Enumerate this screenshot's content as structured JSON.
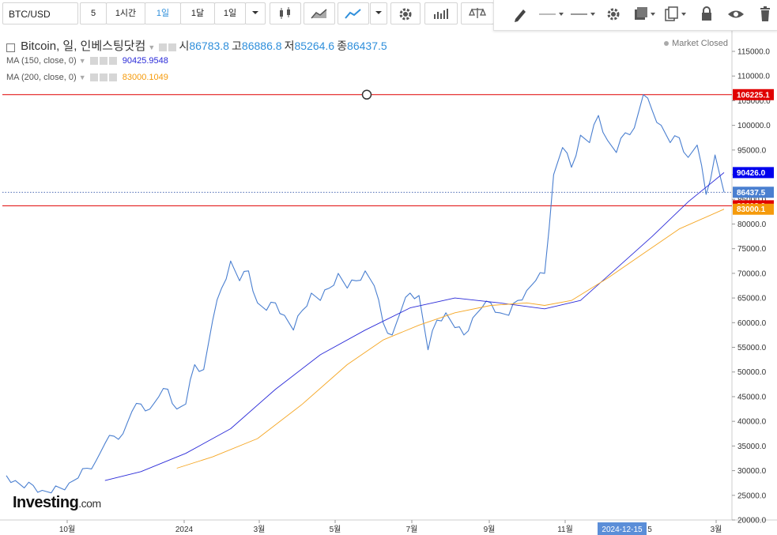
{
  "toolbar": {
    "symbol": "BTC/USD",
    "intervals": [
      "5",
      "1시간",
      "1일",
      "1달",
      "1일"
    ],
    "active_interval": 2
  },
  "legend": {
    "title": "Bitcoin, 일, 인베스팅닷컴",
    "open_label": "시",
    "open": "86783.8",
    "high_label": "고",
    "high": "86886.8",
    "low_label": "저",
    "low": "85264.6",
    "close_label": "종",
    "close": "86437.5",
    "ma150_label": "MA (150, close, 0)",
    "ma150_value": "90425.9548",
    "ma200_label": "MA (200, close, 0)",
    "ma200_value": "83000.1049",
    "market_status": "Market Closed"
  },
  "brand": {
    "name": "Investing",
    "suffix": ".com"
  },
  "colors": {
    "price": "#4a7fd0",
    "ma150": "#2a2ad8",
    "ma200": "#f5a623",
    "hline": "#e00000",
    "accent": "#2f8fdb"
  },
  "chart_data": {
    "type": "line",
    "x_tick_labels": [
      "10월",
      "2024",
      "3월",
      "5월",
      "7월",
      "9월",
      "11월",
      "2024-12-15",
      "3월"
    ],
    "y_tick_labels": [
      "115000.0",
      "110000.0",
      "105000.0",
      "100000.0",
      "95000.0",
      "90000.0",
      "85000.0",
      "80000.0",
      "75000.0",
      "70000.0",
      "65000.0",
      "60000.0",
      "55000.0",
      "50000.0",
      "45000.0",
      "40000.0",
      "35000.0",
      "30000.0",
      "25000.0",
      "20000.0"
    ],
    "ylim": [
      20000,
      117000
    ],
    "price_tags": [
      {
        "label": "106225.1",
        "value": 106225.1,
        "color": "#e00000"
      },
      {
        "label": "90426.0",
        "value": 90426.0,
        "color": "#0000ee"
      },
      {
        "label": "86437.5",
        "value": 86437.5,
        "color": "#4a7fd0"
      },
      {
        "label": "83698.9",
        "value": 83698.9,
        "color": "#e00000"
      },
      {
        "label": "83000.1",
        "value": 83000.1,
        "color": "#f59a0b"
      }
    ],
    "horizontal_lines": [
      106225.1,
      83698.9
    ],
    "current_price": 86437.5,
    "series": [
      {
        "key": "price",
        "x": [
          0,
          1,
          2,
          3,
          4,
          5,
          6,
          7,
          8,
          9,
          10,
          11,
          12,
          13,
          14,
          15,
          16,
          17,
          18,
          19,
          20,
          21,
          22,
          23,
          24,
          25,
          26,
          27,
          28,
          29,
          30,
          31,
          32,
          33,
          34,
          35,
          36,
          37,
          38,
          39,
          40,
          41,
          42,
          43,
          44,
          45,
          46,
          47,
          48,
          49,
          50,
          51,
          52,
          53,
          54,
          55,
          56,
          57,
          58,
          59,
          60,
          61,
          62,
          63,
          64,
          65,
          66,
          67,
          68,
          69,
          70,
          71,
          72,
          73,
          74,
          75,
          76,
          77,
          78,
          79,
          80
        ],
        "values": [
          29000,
          28000,
          26500,
          27000,
          26000,
          25500,
          26500,
          27500,
          28500,
          30500,
          32000,
          35500,
          37000,
          37500,
          42000,
          43500,
          42500,
          45000,
          46500,
          42500,
          43500,
          51500,
          50500,
          60500,
          67000,
          72500,
          68500,
          70500,
          64000,
          62500,
          64000,
          61500,
          58500,
          62500,
          66000,
          64500,
          67000,
          70000,
          67000,
          68500,
          70500,
          67500,
          60000,
          57500,
          62500,
          66000,
          65500,
          54500,
          60500,
          62000,
          59000,
          57500,
          61000,
          63000,
          64000,
          62000,
          61500,
          64500,
          66500,
          68500,
          70000,
          90000,
          95500,
          91500,
          98000,
          96500,
          102000,
          97000,
          94500,
          98500,
          99500,
          106225,
          103000,
          100000,
          96500,
          97500,
          93500,
          96000,
          86000,
          94000,
          86437
        ]
      },
      {
        "key": "ma150",
        "x": [
          11,
          15,
          20,
          25,
          30,
          35,
          40,
          45,
          50,
          55,
          60,
          64,
          68,
          72,
          76,
          80
        ],
        "values": [
          28000,
          29800,
          33500,
          38500,
          46500,
          53500,
          58500,
          63000,
          65000,
          64000,
          62800,
          64500,
          71000,
          77500,
          84500,
          90426
        ]
      },
      {
        "key": "ma200",
        "x": [
          19,
          23,
          28,
          33,
          38,
          42,
          46,
          50,
          54,
          58,
          60,
          63,
          67,
          71,
          75,
          80
        ],
        "values": [
          30500,
          32800,
          36500,
          43500,
          51500,
          56500,
          59500,
          62000,
          63500,
          64000,
          63500,
          64500,
          69000,
          74000,
          79000,
          83000
        ]
      }
    ]
  }
}
